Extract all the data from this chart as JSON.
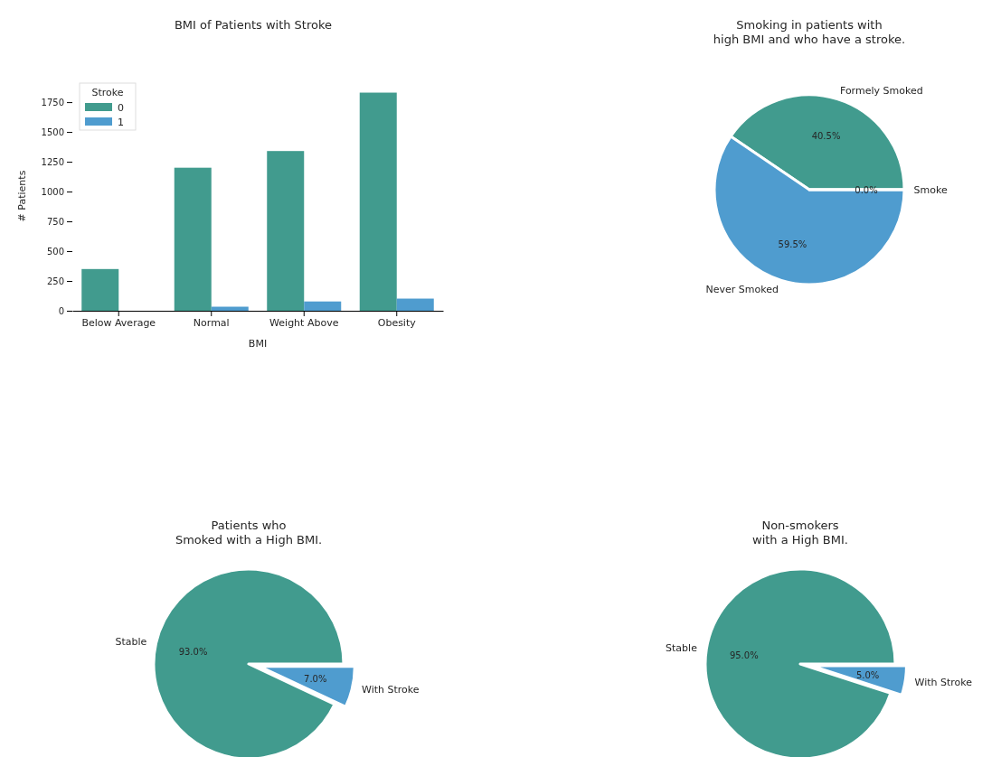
{
  "chart_data": [
    {
      "type": "bar",
      "title": "BMI of Patients with Stroke",
      "xlabel": "BMI",
      "ylabel": "# Patients",
      "legend_title": "Stroke",
      "legend": "top left",
      "categories": [
        "Below Average",
        "Normal",
        "Weight Above",
        "Obesity"
      ],
      "ylim": [
        0,
        1925
      ],
      "yticks": [
        0,
        250,
        500,
        750,
        1000,
        1250,
        1500,
        1750
      ],
      "series": [
        {
          "name": "0",
          "color": "#419b8e",
          "values": [
            350,
            1200,
            1340,
            1830
          ]
        },
        {
          "name": "1",
          "color": "#4f9ccf",
          "values": [
            0,
            34,
            78,
            102
          ]
        }
      ]
    },
    {
      "type": "pie",
      "title": "Smoking in patients with\nhigh BMI and who have a stroke.",
      "categories": [
        "Formely Smoked",
        "Never Smoked",
        "Smoke"
      ],
      "values": [
        40.5,
        59.5,
        0.0
      ],
      "colors": [
        "#419b8e",
        "#4f9ccf",
        "#419b8e"
      ],
      "value_labels": [
        "40.5%",
        "59.5%",
        "0.0%"
      ]
    },
    {
      "type": "pie",
      "title": "Patients who\nSmoked with a High BMI.",
      "categories": [
        "Stable",
        "With Stroke"
      ],
      "values": [
        93.0,
        7.0
      ],
      "colors": [
        "#419b8e",
        "#4f9ccf"
      ],
      "value_labels": [
        "93.0%",
        "7.0%"
      ]
    },
    {
      "type": "pie",
      "title": "Non-smokers\nwith a High BMI.",
      "categories": [
        "Stable",
        "With Stroke"
      ],
      "values": [
        95.0,
        5.0
      ],
      "colors": [
        "#419b8e",
        "#4f9ccf"
      ],
      "value_labels": [
        "95.0%",
        "5.0%"
      ]
    }
  ]
}
